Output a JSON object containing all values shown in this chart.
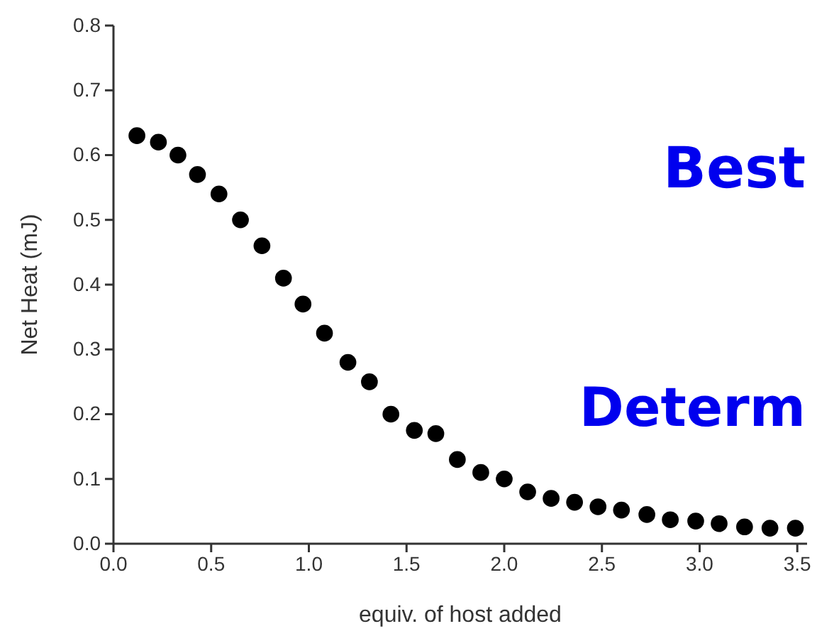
{
  "chart_data": {
    "type": "scatter",
    "xlabel": "equiv. of host added",
    "ylabel": "Net Heat (mJ)",
    "x": [
      0.12,
      0.23,
      0.33,
      0.43,
      0.54,
      0.65,
      0.76,
      0.87,
      0.97,
      1.08,
      1.2,
      1.31,
      1.42,
      1.54,
      1.65,
      1.76,
      1.88,
      2.0,
      2.12,
      2.24,
      2.36,
      2.48,
      2.6,
      2.73,
      2.85,
      2.98,
      3.1,
      3.23,
      3.36,
      3.49
    ],
    "series": [
      {
        "color": "#000000",
        "values": [
          0.63,
          0.62,
          0.6,
          0.57,
          0.54,
          0.5,
          0.46,
          0.41,
          0.37,
          0.325,
          0.28,
          0.25,
          0.2,
          0.175,
          0.17,
          0.13,
          0.11,
          0.1,
          0.08,
          0.07,
          0.064,
          0.057,
          0.052,
          0.045,
          0.037,
          0.035,
          0.031,
          0.026,
          0.024,
          0.024
        ]
      }
    ],
    "marker": "circle",
    "xlim": [
      0,
      3.55
    ],
    "ylim": [
      0,
      0.8
    ],
    "xticks": [
      {
        "value": 0,
        "label": "0.0"
      },
      0.5,
      {
        "value": 1,
        "label": "1.0"
      },
      1.5,
      {
        "value": 2,
        "label": "2.0"
      },
      2.5,
      {
        "value": 3,
        "label": "3.0"
      },
      3.5
    ],
    "yticks": [
      {
        "value": 0,
        "label": "0.0"
      },
      0.1,
      0.2,
      0.3,
      0.4,
      0.5,
      0.6,
      0.7,
      0.8
    ],
    "annotations": [
      "Best",
      "Determ"
    ]
  }
}
